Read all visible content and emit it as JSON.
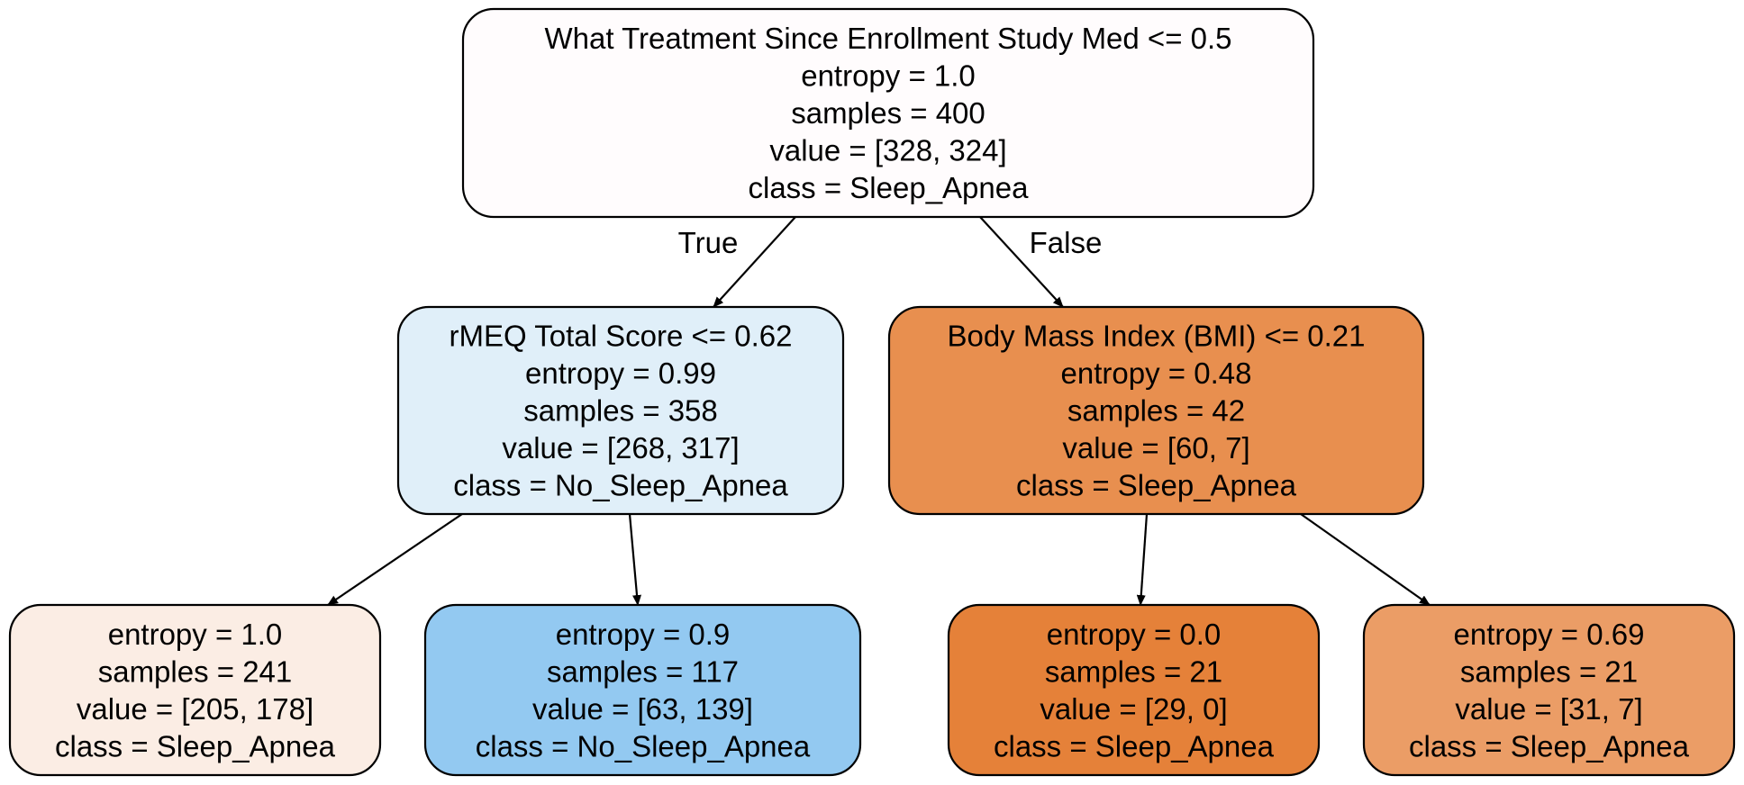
{
  "tree": {
    "nodes": [
      {
        "id": "root",
        "lines": [
          "What Treatment Since Enrollment Study Med <= 0.5",
          "entropy = 1.0",
          "samples = 400",
          "value = [328, 324]",
          "class = Sleep_Apnea"
        ],
        "fill": "#fffcfd"
      },
      {
        "id": "left",
        "lines": [
          "rMEQ Total Score <= 0.62",
          "entropy = 0.99",
          "samples = 358",
          "value = [268, 317]",
          "class = No_Sleep_Apnea"
        ],
        "fill": "#e0eff9"
      },
      {
        "id": "right",
        "lines": [
          "Body Mass Index (BMI) <= 0.21",
          "entropy = 0.48",
          "samples = 42",
          "value = [60, 7]",
          "class = Sleep_Apnea"
        ],
        "fill": "#e88f4f"
      },
      {
        "id": "left-left",
        "lines": [
          "entropy = 1.0",
          "samples = 241",
          "value = [205, 178]",
          "class = Sleep_Apnea"
        ],
        "fill": "#fbede4"
      },
      {
        "id": "left-right",
        "lines": [
          "entropy = 0.9",
          "samples = 117",
          "value = [63, 139]",
          "class = No_Sleep_Apnea"
        ],
        "fill": "#93c9f1"
      },
      {
        "id": "right-left",
        "lines": [
          "entropy = 0.0",
          "samples = 21",
          "value = [29, 0]",
          "class = Sleep_Apnea"
        ],
        "fill": "#e58139"
      },
      {
        "id": "right-right",
        "lines": [
          "entropy = 0.69",
          "samples = 21",
          "value = [31, 7]",
          "class = Sleep_Apnea"
        ],
        "fill": "#eb9d66"
      }
    ],
    "edges": [
      {
        "from": "root",
        "to": "left",
        "label": "True"
      },
      {
        "from": "root",
        "to": "right",
        "label": "False"
      },
      {
        "from": "left",
        "to": "left-left",
        "label": ""
      },
      {
        "from": "left",
        "to": "left-right",
        "label": ""
      },
      {
        "from": "right",
        "to": "right-left",
        "label": ""
      },
      {
        "from": "right",
        "to": "right-right",
        "label": ""
      }
    ],
    "stroke_color": "#000000"
  }
}
